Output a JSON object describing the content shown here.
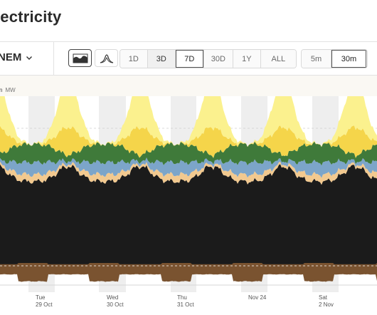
{
  "page": {
    "title": "lectricity"
  },
  "toolbar": {
    "region": "NEM",
    "range_options": [
      "1D",
      "3D",
      "7D",
      "30D",
      "1Y",
      "ALL"
    ],
    "range_selected": "7D",
    "interval_options": [
      "5m",
      "30m"
    ],
    "interval_selected": "30m"
  },
  "chart_header": {
    "label": "n",
    "unit": "MW"
  },
  "chart_data": {
    "type": "area",
    "stacked": true,
    "title": "",
    "xlabel": "",
    "ylabel": "",
    "x_ticks": [
      {
        "line1": "Tue",
        "line2": "29 Oct"
      },
      {
        "line1": "Wed",
        "line2": "30 Oct"
      },
      {
        "line1": "Thu",
        "line2": "31 Oct"
      },
      {
        "line1": "Nov 24",
        "line2": ""
      },
      {
        "line1": "Sat",
        "line2": "2 Nov"
      }
    ],
    "series": [
      {
        "color": "#1b1b1b",
        "night_level": 0.55,
        "day_level": 0.65
      },
      {
        "color": "#f2c98f",
        "night_level": 0.045,
        "day_level": 0.015
      },
      {
        "color": "#7ca5c9",
        "night_level": 0.08,
        "day_level": 0.02
      },
      {
        "color": "#3f7a3a",
        "night_level": 0.12,
        "day_level": 0.04
      },
      {
        "color": "#f5d54a",
        "night_level": 0.0,
        "day_level": 0.18
      },
      {
        "color": "#fbf18e",
        "night_level": 0.0,
        "day_level": 0.3
      }
    ],
    "negative_series": {
      "color": "#7a5330",
      "level": 0.12
    },
    "grid": true,
    "legend": "none"
  }
}
